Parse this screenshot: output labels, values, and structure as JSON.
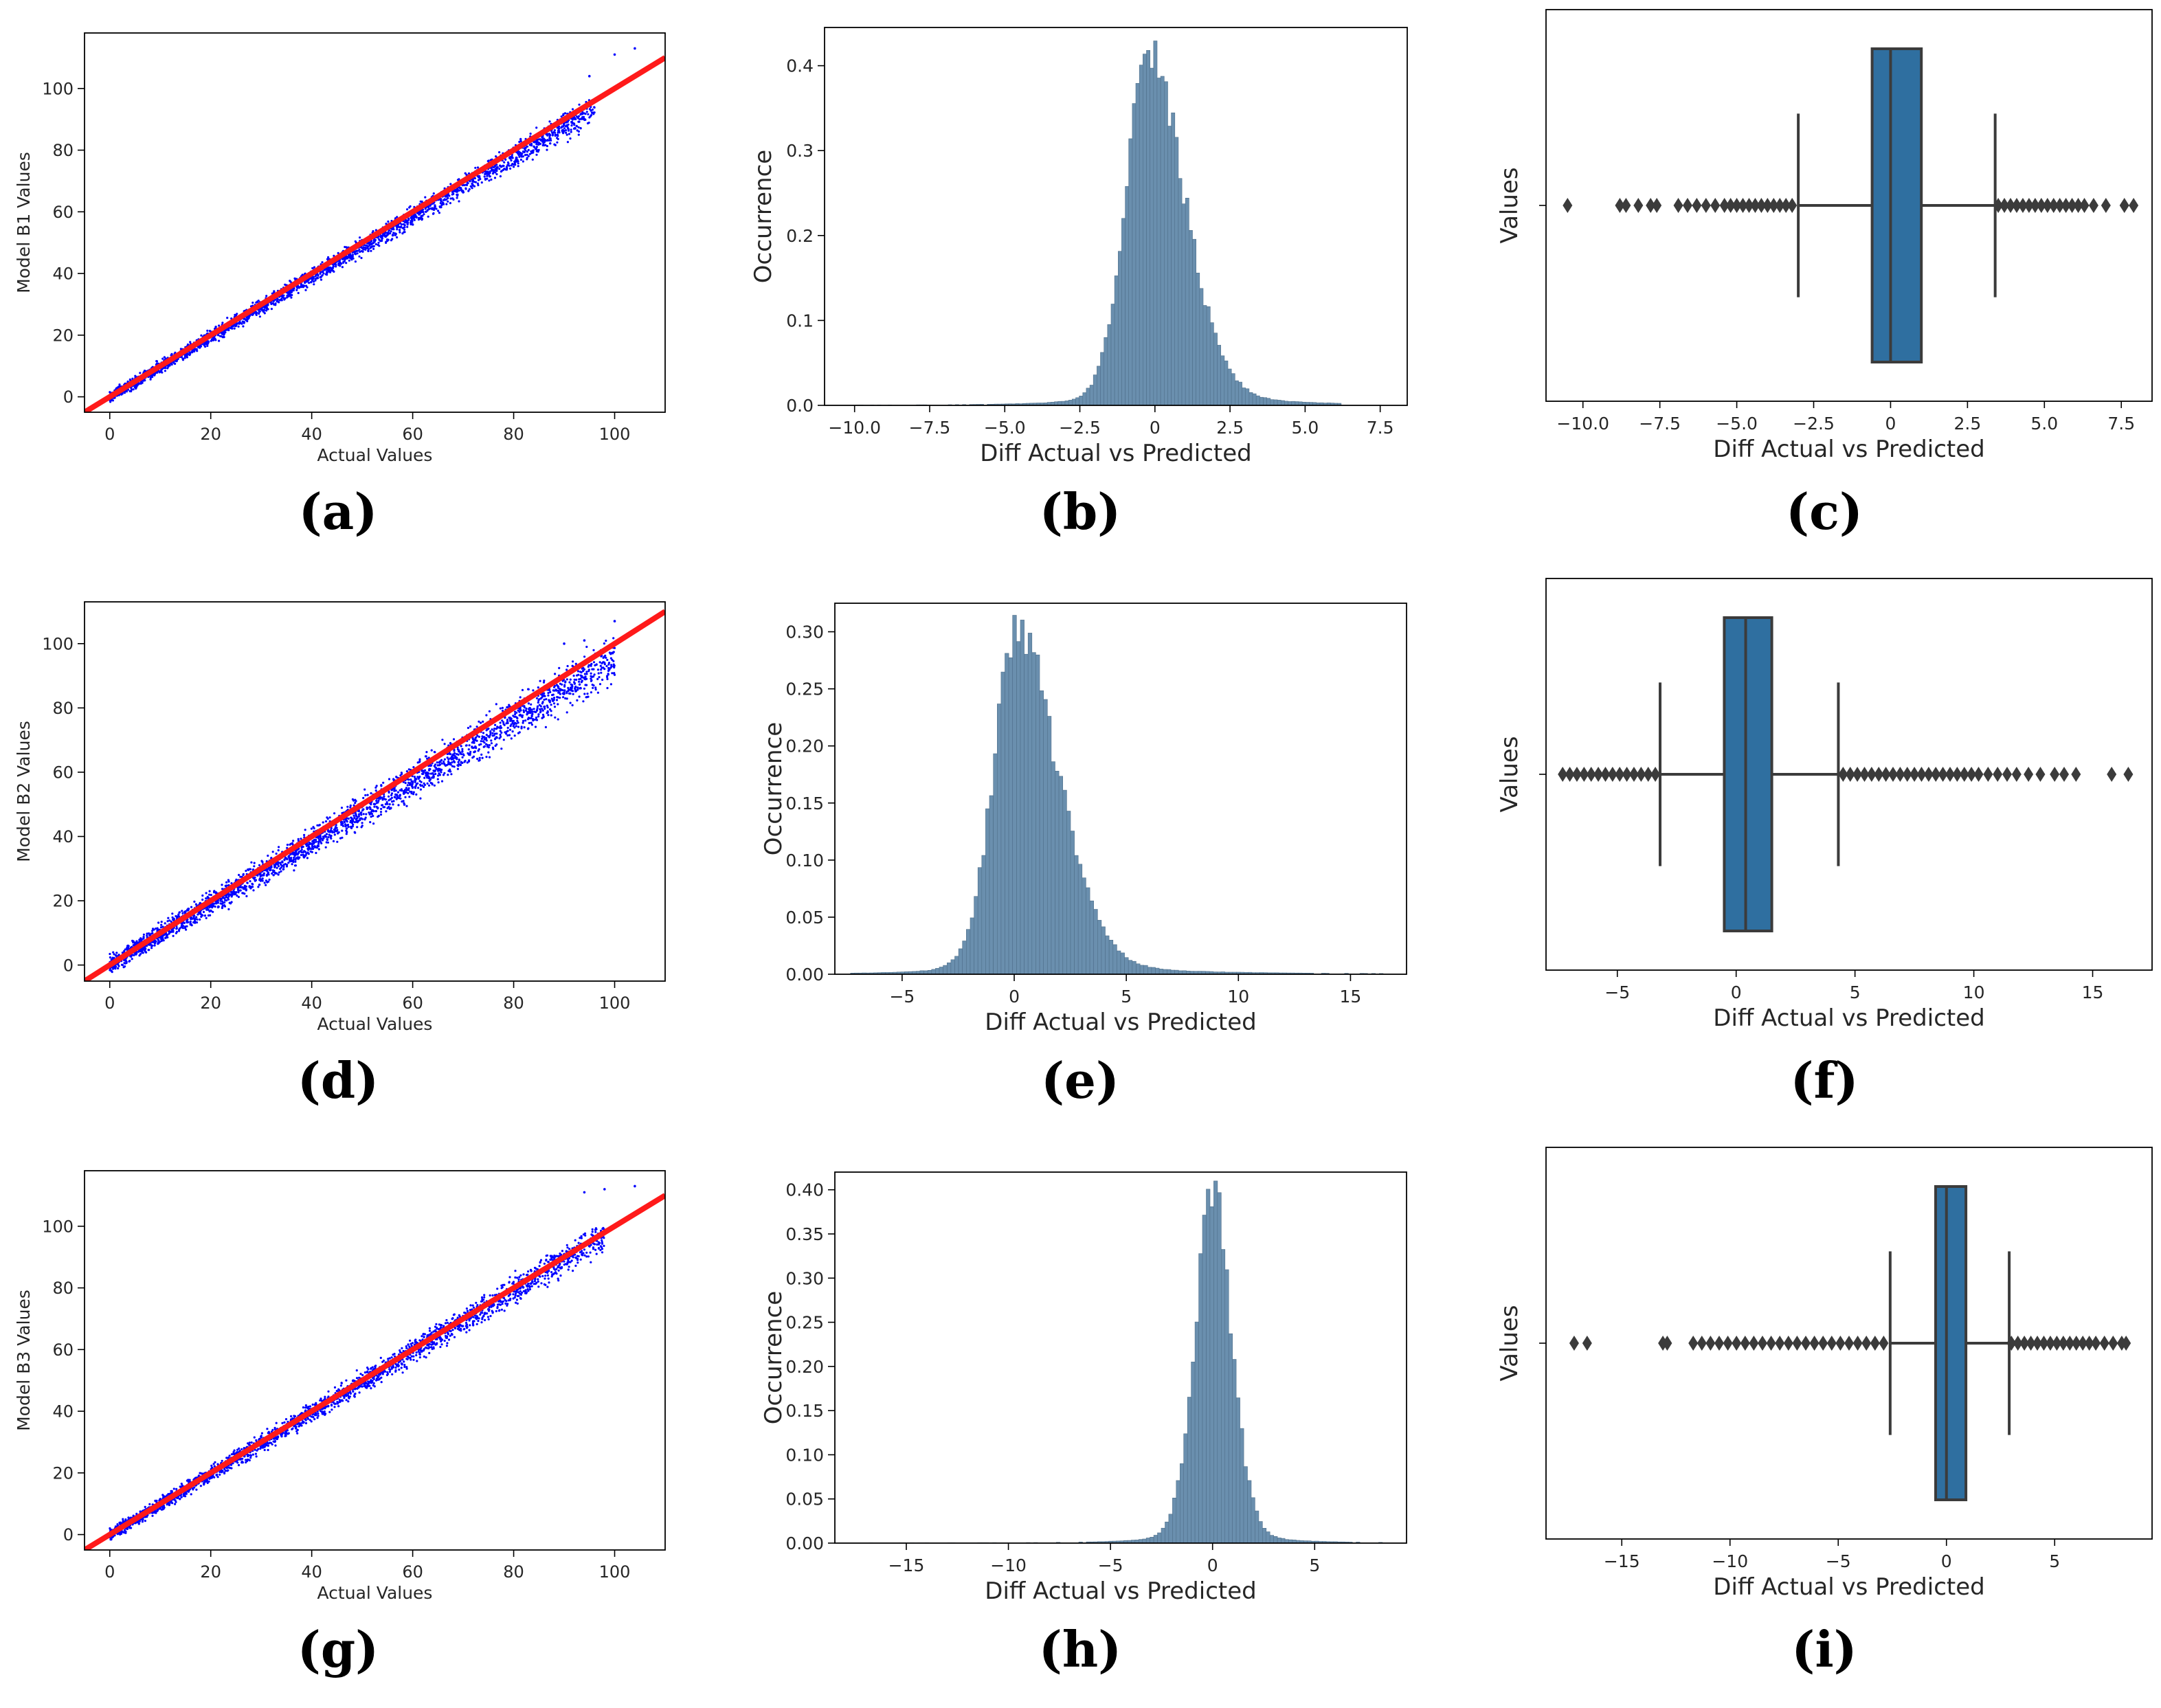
{
  "colors": {
    "scatter_points": "#0000ff",
    "identity_line": "#ff1a1a",
    "hist_fill": "#6a8fae",
    "hist_edge": "#4f6f8a",
    "box_fill": "#2f6fa0",
    "box_edge": "#3b3b3b",
    "outlier": "#3b3b3b"
  },
  "chart_data": [
    {
      "id": "a",
      "type": "scatter",
      "panel_label": "(a)",
      "xlabel": "Actual Values",
      "ylabel": "Model B1 Values",
      "xlim": [
        -5,
        110
      ],
      "ylim": [
        -5,
        118
      ],
      "xticks": [
        0,
        20,
        40,
        60,
        80,
        100
      ],
      "yticks": [
        0,
        20,
        40,
        60,
        80,
        100
      ],
      "slope": 0.975,
      "spread": 1.6,
      "max_actual": 96,
      "outliers": [
        [
          104,
          113
        ],
        [
          100,
          111
        ],
        [
          95,
          104
        ]
      ],
      "fit_line": {
        "x": [
          -5,
          110
        ],
        "y": [
          -5,
          110
        ]
      }
    },
    {
      "id": "b",
      "type": "histogram",
      "panel_label": "(b)",
      "xlabel": "Diff Actual vs Predicted",
      "ylabel": "Occurrence",
      "xlim": [
        -11,
        8.4
      ],
      "ylim": [
        0,
        0.445
      ],
      "xticks": [
        -10.0,
        -7.5,
        -5.0,
        -2.5,
        0.0,
        2.5,
        5.0,
        7.5
      ],
      "yticks": [
        0.0,
        0.1,
        0.2,
        0.3,
        0.4
      ],
      "mode": -0.25,
      "sigma_left": 0.75,
      "sigma_right": 1.25,
      "peak": 0.43,
      "range": [
        -10.3,
        6.2
      ]
    },
    {
      "id": "c",
      "type": "box",
      "panel_label": "(c)",
      "xlabel": "Diff Actual vs Predicted",
      "ylabel": "Values",
      "xlim": [
        -11.2,
        8.5
      ],
      "xticks": [
        -10.0,
        -7.5,
        -5.0,
        -2.5,
        0.0,
        2.5,
        5.0,
        7.5
      ],
      "q1": -0.6,
      "median": 0.0,
      "q3": 1.0,
      "whisker_low": -3.0,
      "whisker_high": 3.4,
      "outliers_low": [
        -10.5,
        -8.8,
        -8.6,
        -8.2,
        -7.8,
        -7.6,
        -6.9,
        -6.6,
        -6.3,
        -6.0,
        -5.7,
        -5.4,
        -5.2,
        -5.0,
        -4.8,
        -4.6,
        -4.4,
        -4.2,
        -4.0,
        -3.8,
        -3.6,
        -3.4,
        -3.2
      ],
      "outliers_high": [
        3.5,
        3.7,
        3.9,
        4.1,
        4.3,
        4.5,
        4.7,
        4.9,
        5.1,
        5.3,
        5.5,
        5.7,
        5.9,
        6.1,
        6.3,
        6.6,
        7.0,
        7.6,
        7.9
      ]
    },
    {
      "id": "d",
      "type": "scatter",
      "panel_label": "(d)",
      "xlabel": "Actual Values",
      "ylabel": "Model B2 Values",
      "xlim": [
        -5,
        110
      ],
      "ylim": [
        -5,
        113
      ],
      "xticks": [
        0,
        20,
        40,
        60,
        80,
        100
      ],
      "yticks": [
        0,
        20,
        40,
        60,
        80,
        100
      ],
      "slope": 0.955,
      "spread": 2.6,
      "max_actual": 100,
      "outliers": [
        [
          100,
          107
        ],
        [
          90,
          100
        ],
        [
          94,
          101
        ]
      ],
      "fit_line": {
        "x": [
          -5,
          110
        ],
        "y": [
          -5,
          110
        ]
      }
    },
    {
      "id": "e",
      "type": "histogram",
      "panel_label": "(e)",
      "xlabel": "Diff Actual vs Predicted",
      "ylabel": "Occurrence",
      "xlim": [
        -8,
        17.5
      ],
      "ylim": [
        0,
        0.325
      ],
      "xticks": [
        -5,
        0,
        5,
        10,
        15
      ],
      "yticks": [
        0.0,
        0.05,
        0.1,
        0.15,
        0.2,
        0.25,
        0.3
      ],
      "yticklabels": [
        "0.00",
        "0.05",
        "0.10",
        "0.15",
        "0.20",
        "0.25",
        "0.30"
      ],
      "mode": 0.1,
      "sigma_left": 1.05,
      "sigma_right": 1.9,
      "peak": 0.31,
      "range": [
        -7.3,
        16.8
      ]
    },
    {
      "id": "f",
      "type": "box",
      "panel_label": "(f)",
      "xlabel": "Diff Actual vs Predicted",
      "ylabel": "Values",
      "xlim": [
        -8,
        17.5
      ],
      "xticks": [
        -5,
        0,
        5,
        10,
        15
      ],
      "q1": -0.5,
      "median": 0.4,
      "q3": 1.5,
      "whisker_low": -3.2,
      "whisker_high": 4.3,
      "outliers_low": [
        -7.3,
        -7.0,
        -6.7,
        -6.4,
        -6.1,
        -5.8,
        -5.5,
        -5.2,
        -4.9,
        -4.6,
        -4.3,
        -4.0,
        -3.7,
        -3.4
      ],
      "outliers_high": [
        4.5,
        4.8,
        5.1,
        5.4,
        5.7,
        6.0,
        6.3,
        6.6,
        6.9,
        7.2,
        7.5,
        7.8,
        8.1,
        8.4,
        8.7,
        9.0,
        9.3,
        9.6,
        9.9,
        10.2,
        10.6,
        11.0,
        11.4,
        11.8,
        12.3,
        12.8,
        13.4,
        13.8,
        14.3,
        15.8,
        16.5
      ]
    },
    {
      "id": "g",
      "type": "scatter",
      "panel_label": "(g)",
      "xlabel": "Actual Values",
      "ylabel": "Model B3 Values",
      "xlim": [
        -5,
        110
      ],
      "ylim": [
        -5,
        118
      ],
      "xticks": [
        0,
        20,
        40,
        60,
        80,
        100
      ],
      "yticks": [
        0,
        20,
        40,
        60,
        80,
        100
      ],
      "slope": 0.99,
      "spread": 1.8,
      "max_actual": 98,
      "outliers": [
        [
          94,
          111
        ],
        [
          98,
          112
        ],
        [
          104,
          113
        ]
      ],
      "fit_line": {
        "x": [
          -5,
          110
        ],
        "y": [
          -5,
          110
        ]
      }
    },
    {
      "id": "h",
      "type": "histogram",
      "panel_label": "(h)",
      "xlabel": "Diff Actual vs Predicted",
      "ylabel": "Occurrence",
      "xlim": [
        -18.5,
        9.5
      ],
      "ylim": [
        0,
        0.42
      ],
      "xticks": [
        -15,
        -10,
        -5,
        0,
        5
      ],
      "yticks": [
        0.0,
        0.05,
        0.1,
        0.15,
        0.2,
        0.25,
        0.3,
        0.35,
        0.4
      ],
      "yticklabels": [
        "0.00",
        "0.05",
        "0.10",
        "0.15",
        "0.20",
        "0.25",
        "0.30",
        "0.35",
        "0.40"
      ],
      "mode": 0.0,
      "sigma_left": 0.9,
      "sigma_right": 0.95,
      "peak": 0.405,
      "range": [
        -17.2,
        8.5
      ]
    },
    {
      "id": "i",
      "type": "box",
      "panel_label": "(i)",
      "xlabel": "Diff Actual vs Predicted",
      "ylabel": "Values",
      "xlim": [
        -18.5,
        9.5
      ],
      "xticks": [
        -15,
        -10,
        -5,
        0,
        5
      ],
      "q1": -0.5,
      "median": 0.0,
      "q3": 0.9,
      "whisker_low": -2.6,
      "whisker_high": 2.9,
      "outliers_low": [
        -17.2,
        -16.6,
        -13.1,
        -12.9,
        -11.7,
        -11.3,
        -10.9,
        -10.5,
        -10.1,
        -9.7,
        -9.3,
        -8.9,
        -8.5,
        -8.1,
        -7.7,
        -7.3,
        -6.9,
        -6.5,
        -6.1,
        -5.7,
        -5.3,
        -4.9,
        -4.5,
        -4.1,
        -3.7,
        -3.3,
        -2.9
      ],
      "outliers_high": [
        3.0,
        3.3,
        3.6,
        3.9,
        4.2,
        4.5,
        4.8,
        5.1,
        5.4,
        5.7,
        6.0,
        6.3,
        6.6,
        6.9,
        7.3,
        7.7,
        8.1,
        8.3
      ]
    }
  ]
}
